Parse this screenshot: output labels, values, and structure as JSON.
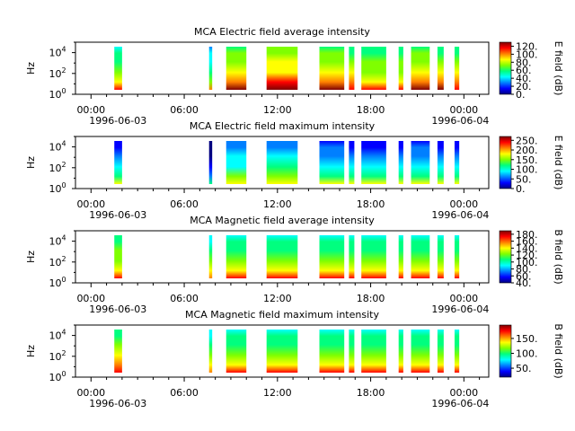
{
  "chart_data": [
    {
      "type": "heatmap",
      "title": "MCA  Electric field average intensity",
      "ylabel": "Hz",
      "y_ticks": [
        "10^0",
        "10^2",
        "10^4"
      ],
      "x_ticks": [
        "00:00",
        "06:00",
        "12:00",
        "18:00",
        "00:00"
      ],
      "x_dates": [
        "1996-06-03",
        "1996-06-04"
      ],
      "colorbar": {
        "label": "E field (dB)",
        "ticks": [
          "0.",
          "20.",
          "40.",
          "60.",
          "80.",
          "100.",
          "120."
        ],
        "range": [
          0,
          130
        ]
      },
      "segments": [
        {
          "start": 1.5,
          "end": 2.0,
          "level": 0.55
        },
        {
          "start": 7.6,
          "end": 7.8,
          "level": 0.45
        },
        {
          "start": 8.7,
          "end": 10.0,
          "level": 0.7
        },
        {
          "start": 11.3,
          "end": 13.3,
          "level": 0.72
        },
        {
          "start": 14.7,
          "end": 16.3,
          "level": 0.68
        },
        {
          "start": 16.6,
          "end": 16.95,
          "level": 0.62
        },
        {
          "start": 17.4,
          "end": 19.0,
          "level": 0.6
        },
        {
          "start": 19.8,
          "end": 20.1,
          "level": 0.6
        },
        {
          "start": 20.6,
          "end": 21.8,
          "level": 0.7
        },
        {
          "start": 22.3,
          "end": 22.7,
          "level": 0.65
        },
        {
          "start": 23.4,
          "end": 23.7,
          "level": 0.62
        }
      ]
    },
    {
      "type": "heatmap",
      "title": "MCA  Electric field maximum intensity",
      "ylabel": "Hz",
      "y_ticks": [
        "10^0",
        "10^2",
        "10^4"
      ],
      "x_ticks": [
        "00:00",
        "06:00",
        "12:00",
        "18:00",
        "00:00"
      ],
      "x_dates": [
        "1996-06-03",
        "1996-06-04"
      ],
      "colorbar": {
        "label": "E field (dB)",
        "ticks": [
          "0.",
          "50.",
          "100.",
          "150.",
          "200.",
          "250."
        ],
        "range": [
          0,
          270
        ]
      },
      "segments": [
        {
          "start": 1.5,
          "end": 2.0,
          "level": 0.3
        },
        {
          "start": 7.6,
          "end": 7.8,
          "level": 0.15
        },
        {
          "start": 8.7,
          "end": 10.0,
          "level": 0.38
        },
        {
          "start": 11.3,
          "end": 13.3,
          "level": 0.4
        },
        {
          "start": 14.7,
          "end": 16.3,
          "level": 0.35
        },
        {
          "start": 16.6,
          "end": 16.95,
          "level": 0.3
        },
        {
          "start": 17.4,
          "end": 19.0,
          "level": 0.32
        },
        {
          "start": 19.8,
          "end": 20.1,
          "level": 0.3
        },
        {
          "start": 20.6,
          "end": 21.8,
          "level": 0.34
        },
        {
          "start": 22.3,
          "end": 22.7,
          "level": 0.32
        },
        {
          "start": 23.4,
          "end": 23.7,
          "level": 0.3
        }
      ]
    },
    {
      "type": "heatmap",
      "title": "MCA  Magnetic field average intensity",
      "ylabel": "Hz",
      "y_ticks": [
        "10^0",
        "10^2",
        "10^4"
      ],
      "x_ticks": [
        "00:00",
        "06:00",
        "12:00",
        "18:00",
        "00:00"
      ],
      "x_dates": [
        "1996-06-03",
        "1996-06-04"
      ],
      "colorbar": {
        "label": "B field (dB)",
        "ticks": [
          "40.",
          "60.",
          "80.",
          "100.",
          "120.",
          "140.",
          "160.",
          "180."
        ],
        "range": [
          40,
          190
        ]
      },
      "segments": [
        {
          "start": 1.5,
          "end": 2.0,
          "level": 0.6
        },
        {
          "start": 7.6,
          "end": 7.8,
          "level": 0.5
        },
        {
          "start": 8.7,
          "end": 10.0,
          "level": 0.58
        },
        {
          "start": 11.3,
          "end": 13.3,
          "level": 0.56
        },
        {
          "start": 14.7,
          "end": 16.3,
          "level": 0.55
        },
        {
          "start": 16.6,
          "end": 16.95,
          "level": 0.58
        },
        {
          "start": 17.4,
          "end": 19.0,
          "level": 0.55
        },
        {
          "start": 19.8,
          "end": 20.1,
          "level": 0.58
        },
        {
          "start": 20.6,
          "end": 21.8,
          "level": 0.56
        },
        {
          "start": 22.3,
          "end": 22.7,
          "level": 0.58
        },
        {
          "start": 23.4,
          "end": 23.7,
          "level": 0.55
        }
      ]
    },
    {
      "type": "heatmap",
      "title": "MCA  Magnetic field maximum intensity",
      "ylabel": "Hz",
      "y_ticks": [
        "10^0",
        "10^2",
        "10^4"
      ],
      "x_ticks": [
        "00:00",
        "06:00",
        "12:00",
        "18:00",
        "00:00"
      ],
      "x_dates": [
        "1996-06-03",
        "1996-06-04"
      ],
      "colorbar": {
        "label": "B field (dB)",
        "ticks": [
          "50.",
          "100.",
          "150."
        ],
        "range": [
          20,
          195
        ]
      },
      "segments": [
        {
          "start": 1.5,
          "end": 2.0,
          "level": 0.62
        },
        {
          "start": 7.6,
          "end": 7.8,
          "level": 0.5
        },
        {
          "start": 8.7,
          "end": 10.0,
          "level": 0.58
        },
        {
          "start": 11.3,
          "end": 13.3,
          "level": 0.56
        },
        {
          "start": 14.7,
          "end": 16.3,
          "level": 0.55
        },
        {
          "start": 16.6,
          "end": 16.95,
          "level": 0.58
        },
        {
          "start": 17.4,
          "end": 19.0,
          "level": 0.55
        },
        {
          "start": 19.8,
          "end": 20.1,
          "level": 0.58
        },
        {
          "start": 20.6,
          "end": 21.8,
          "level": 0.56
        },
        {
          "start": 22.3,
          "end": 22.7,
          "level": 0.58
        },
        {
          "start": 23.4,
          "end": 23.7,
          "level": 0.55
        }
      ]
    }
  ],
  "colormap": [
    "#00007f",
    "#0000ff",
    "#007fff",
    "#00ffff",
    "#00ff7f",
    "#7fff00",
    "#ffff00",
    "#ff7f00",
    "#ff0000",
    "#7f0000"
  ]
}
